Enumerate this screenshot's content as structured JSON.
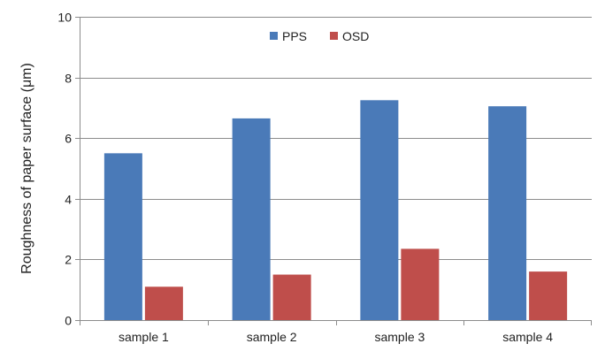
{
  "chart_data": {
    "type": "bar",
    "categories": [
      "sample 1",
      "sample 2",
      "sample 3",
      "sample 4"
    ],
    "series": [
      {
        "name": "PPS",
        "values": [
          5.5,
          6.65,
          7.25,
          7.05
        ],
        "color": "#4a7ab8"
      },
      {
        "name": "OSD",
        "values": [
          1.1,
          1.5,
          2.35,
          1.6
        ],
        "color": "#bf4e4b"
      }
    ],
    "title": "",
    "xlabel": "",
    "ylabel": "Roughness of paper surface (μm)",
    "ylim": [
      0,
      10
    ],
    "yticks": [
      0,
      2,
      4,
      6,
      8,
      10
    ],
    "grid": true,
    "legend_position": "top-center"
  }
}
